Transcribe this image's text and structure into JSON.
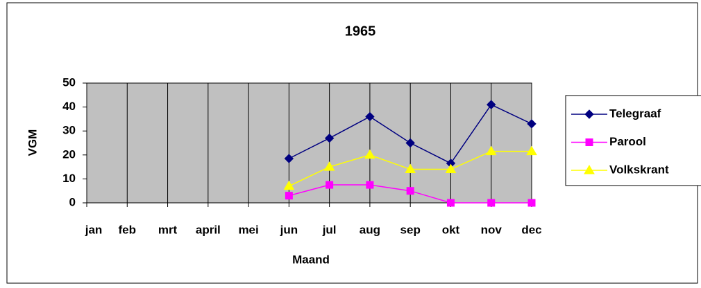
{
  "chart_data": {
    "type": "line",
    "title": "1965",
    "xlabel": "Maand",
    "ylabel": "VGM",
    "categories": [
      "jan",
      "feb",
      "mrt",
      "april",
      "mei",
      "jun",
      "jul",
      "aug",
      "sep",
      "okt",
      "nov",
      "dec"
    ],
    "series": [
      {
        "name": "Telegraaf",
        "color": "#000080",
        "marker": "diamond",
        "values": [
          null,
          null,
          null,
          null,
          null,
          18.5,
          27,
          36,
          25,
          16.5,
          41,
          33
        ]
      },
      {
        "name": "Parool",
        "color": "#ff00ff",
        "marker": "square",
        "values": [
          null,
          null,
          null,
          null,
          null,
          3,
          7.5,
          7.5,
          5,
          0,
          0,
          0
        ]
      },
      {
        "name": "Volkskrant",
        "color": "#ffff00",
        "marker": "triangle",
        "values": [
          null,
          null,
          null,
          null,
          null,
          7,
          15,
          20,
          14,
          14,
          21.5,
          21.5
        ]
      }
    ],
    "ylim": [
      0,
      50
    ],
    "yticks": [
      0,
      10,
      20,
      30,
      40,
      50
    ],
    "grid": "x",
    "legend": "right"
  }
}
